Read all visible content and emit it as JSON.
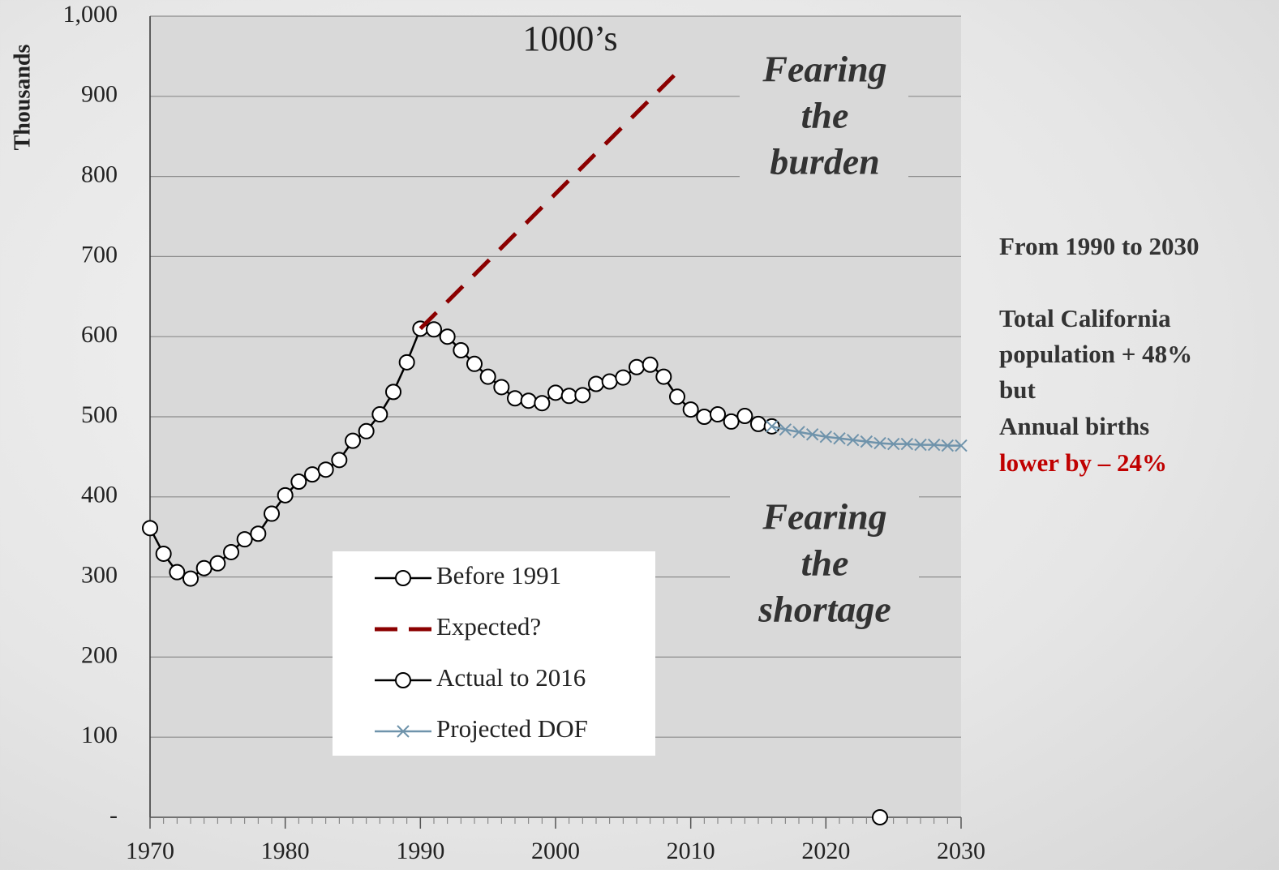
{
  "chart_data": {
    "type": "line",
    "ylabel": "Thousands",
    "xlim": [
      1970,
      2030
    ],
    "xticks": [
      1970,
      1980,
      1990,
      2000,
      2010,
      2020,
      2030
    ],
    "ylim": [
      0,
      1000
    ],
    "yticks": [
      {
        "value": 0,
        "label": "-"
      },
      100,
      200,
      300,
      400,
      500,
      600,
      700,
      800,
      900,
      {
        "value": 1000,
        "label": "1,000"
      }
    ],
    "grid": true,
    "series": [
      {
        "name": "Before 1991",
        "color": "#000000",
        "marker": "circle",
        "dash": false,
        "x": [
          1970,
          1971,
          1972,
          1973,
          1974,
          1975,
          1976,
          1977,
          1978,
          1979,
          1980,
          1981,
          1982,
          1983,
          1984,
          1985,
          1986,
          1987,
          1988,
          1989,
          1990
        ],
        "values": [
          361,
          329,
          306,
          298,
          311,
          317,
          331,
          347,
          354,
          379,
          402,
          419,
          428,
          434,
          446,
          470,
          482,
          503,
          531,
          568,
          610
        ]
      },
      {
        "name": "Expected?",
        "color": "#8b0000",
        "marker": "none",
        "dash": true,
        "x": [
          1990,
          2009
        ],
        "values": [
          610,
          930
        ]
      },
      {
        "name": "Actual to 2016",
        "color": "#000000",
        "marker": "circle",
        "dash": false,
        "x": [
          1991,
          1992,
          1993,
          1994,
          1995,
          1996,
          1997,
          1998,
          1999,
          2000,
          2001,
          2002,
          2003,
          2004,
          2005,
          2006,
          2007,
          2008,
          2009,
          2010,
          2011,
          2012,
          2013,
          2014,
          2015,
          2016,
          2017,
          2024
        ],
        "values": [
          609,
          600,
          583,
          566,
          550,
          537,
          523,
          520,
          517,
          530,
          526,
          527,
          541,
          544,
          549,
          562,
          565,
          550,
          525,
          509,
          500,
          503,
          494,
          501,
          491,
          488,
          null,
          0
        ]
      },
      {
        "name": "Projected DOF",
        "color": "#6f93ab",
        "marker": "x",
        "dash": false,
        "x": [
          2016,
          2017,
          2018,
          2019,
          2020,
          2021,
          2022,
          2023,
          2024,
          2025,
          2026,
          2027,
          2028,
          2029,
          2030
        ],
        "values": [
          488,
          484,
          481,
          478,
          475,
          473,
          471,
          469,
          467,
          466,
          466,
          465,
          465,
          464,
          464
        ]
      }
    ],
    "annotations": [
      {
        "lines": [
          "1000’s"
        ]
      },
      {
        "lines": [
          "Fearing",
          "the",
          "burden"
        ]
      },
      {
        "lines": [
          "Fearing",
          "the",
          "shortage"
        ]
      }
    ],
    "side_note": [
      {
        "text": "From 1990 to 2030",
        "color": "#333333"
      },
      {
        "text": "Total California",
        "color": "#333333"
      },
      {
        "text": "population + 48%",
        "color": "#333333"
      },
      {
        "text": "but",
        "color": "#333333"
      },
      {
        "text": "Annual births",
        "color": "#333333"
      },
      {
        "text": "lower by – 24%",
        "color": "#c00000"
      }
    ]
  }
}
